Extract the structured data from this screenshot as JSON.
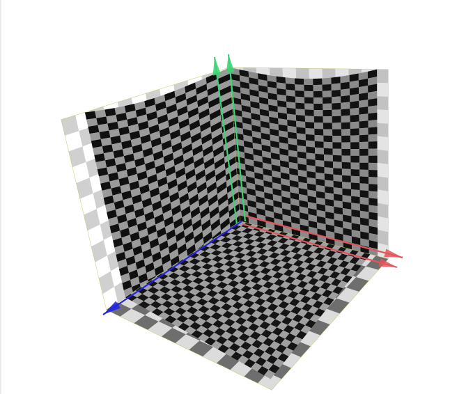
{
  "scene": {
    "background": "#ffffff",
    "panel_border_color": "#c8c86e",
    "checker_colors": {
      "back_wall": {
        "light": "#8a8a8a",
        "dark": "#121212",
        "grid": "#1e1e1e"
      },
      "side_wall": {
        "light": "#9a9a9a",
        "dark": "#101010",
        "grid": "#222222"
      },
      "floor": {
        "light": "#a0a0a0",
        "dark": "#151515",
        "grid": "#262626"
      }
    },
    "panels": [
      {
        "name": "back-wall",
        "outer_checks": 12
      },
      {
        "name": "side-wall",
        "outer_checks": 12
      },
      {
        "name": "floor",
        "outer_checks": 12
      }
    ],
    "axes": [
      {
        "name": "x-axis",
        "color": "#e0565c",
        "icon": "arrow-icon"
      },
      {
        "name": "y-axis",
        "color": "#3bd373",
        "icon": "arrow-icon"
      },
      {
        "name": "z-axis",
        "color": "#2323e6",
        "icon": "arrow-icon"
      }
    ]
  }
}
